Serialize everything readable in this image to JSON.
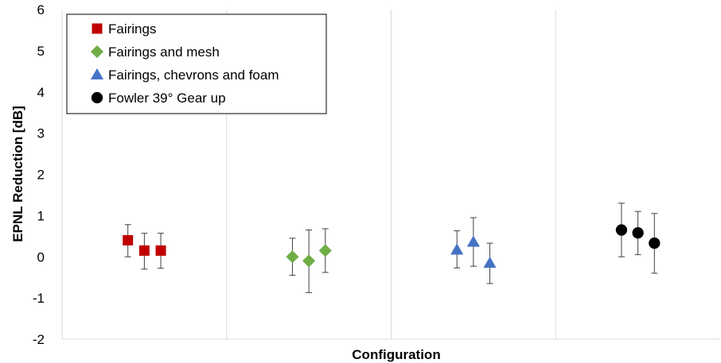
{
  "chart_data": {
    "type": "scatter",
    "title": "",
    "xlabel": "Configuration",
    "ylabel": "EPNL Reduction [dB]",
    "ylim": [
      -2,
      6
    ],
    "yticks": [
      -2,
      -1,
      0,
      1,
      2,
      3,
      4,
      5,
      6
    ],
    "xlim": [
      0,
      4
    ],
    "vertical_gridlines_at": [
      1,
      2,
      3
    ],
    "legend_position": "top-left",
    "series": [
      {
        "name": "Fairings",
        "marker": "square",
        "color": "#C00000",
        "points": [
          {
            "x": 0.4,
            "y": 0.4,
            "err_low": 0.0,
            "err_high": 0.78
          },
          {
            "x": 0.5,
            "y": 0.15,
            "err_low": -0.3,
            "err_high": 0.57
          },
          {
            "x": 0.6,
            "y": 0.15,
            "err_low": -0.28,
            "err_high": 0.57
          }
        ]
      },
      {
        "name": "Fairings and mesh",
        "marker": "diamond",
        "color": "#70AD47",
        "points": [
          {
            "x": 1.4,
            "y": 0.0,
            "err_low": -0.45,
            "err_high": 0.45
          },
          {
            "x": 1.5,
            "y": -0.1,
            "err_low": -0.87,
            "err_high": 0.65
          },
          {
            "x": 1.6,
            "y": 0.15,
            "err_low": -0.38,
            "err_high": 0.68
          }
        ]
      },
      {
        "name": "Fairings, chevrons and foam",
        "marker": "triangle",
        "color": "#4472C4",
        "points": [
          {
            "x": 2.4,
            "y": 0.17,
            "err_low": -0.27,
            "err_high": 0.63
          },
          {
            "x": 2.5,
            "y": 0.36,
            "err_low": -0.23,
            "err_high": 0.95
          },
          {
            "x": 2.6,
            "y": -0.15,
            "err_low": -0.65,
            "err_high": 0.33
          }
        ]
      },
      {
        "name": "Fowler 39° Gear up",
        "marker": "circle",
        "color": "#000000",
        "points": [
          {
            "x": 3.4,
            "y": 0.65,
            "err_low": 0.0,
            "err_high": 1.3
          },
          {
            "x": 3.5,
            "y": 0.58,
            "err_low": 0.05,
            "err_high": 1.1
          },
          {
            "x": 3.6,
            "y": 0.33,
            "err_low": -0.4,
            "err_high": 1.05
          }
        ]
      }
    ]
  }
}
